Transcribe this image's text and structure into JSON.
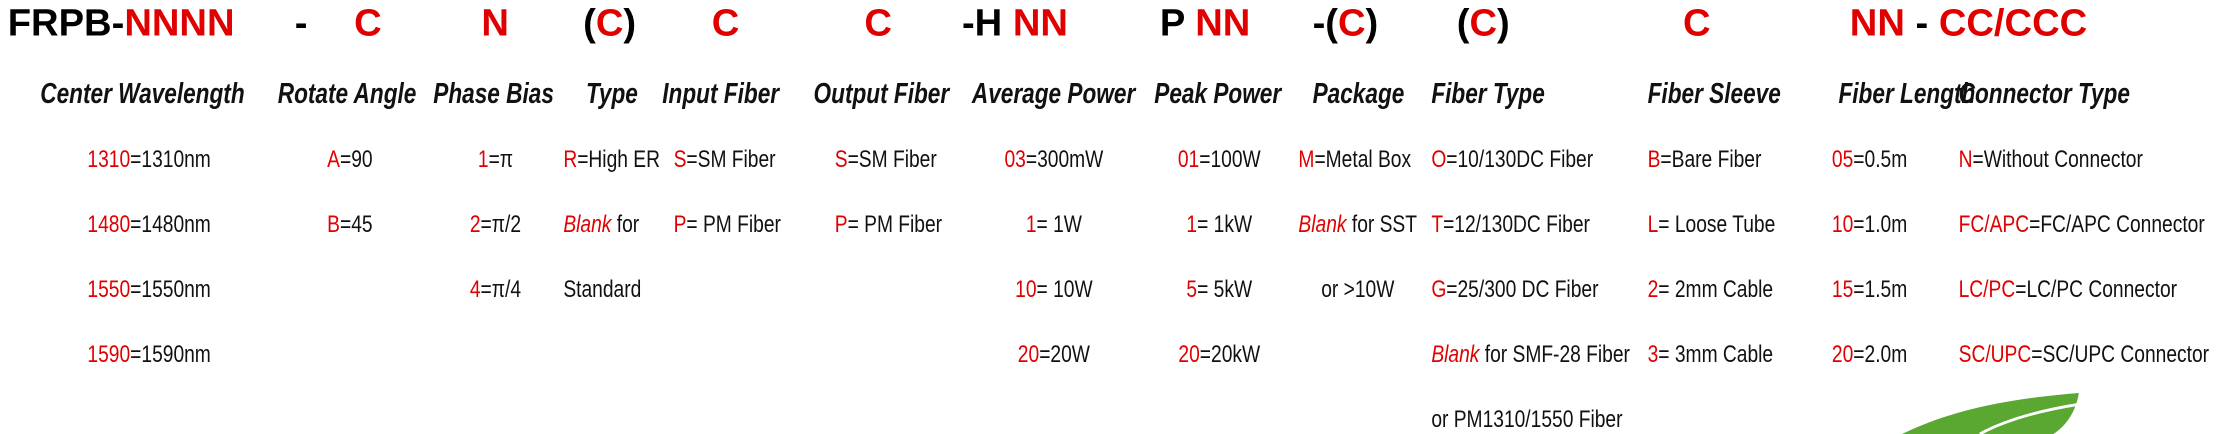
{
  "header": {
    "groups": [
      [
        {
          "text": "FRPB-",
          "color": "#000000"
        },
        {
          "text": "NNNN",
          "color": "#e00000"
        }
      ],
      [
        {
          "text": "-",
          "color": "#000000"
        }
      ],
      [
        {
          "text": "C",
          "color": "#e00000"
        }
      ],
      [
        {
          "text": "N",
          "color": "#e00000"
        }
      ],
      [
        {
          "text": "(",
          "color": "#000000"
        },
        {
          "text": "C",
          "color": "#e00000"
        },
        {
          "text": ")",
          "color": "#000000"
        }
      ],
      [
        {
          "text": "C",
          "color": "#e00000"
        }
      ],
      [
        {
          "text": "C",
          "color": "#e00000"
        }
      ],
      [
        {
          "text": "-H ",
          "color": "#000000"
        },
        {
          "text": "NN",
          "color": "#e00000"
        }
      ],
      [
        {
          "text": "P ",
          "color": "#000000"
        },
        {
          "text": "NN",
          "color": "#e00000"
        }
      ],
      [
        {
          "text": "-(",
          "color": "#000000"
        },
        {
          "text": "C",
          "color": "#e00000"
        },
        {
          "text": ")",
          "color": "#000000"
        }
      ],
      [
        {
          "text": "(",
          "color": "#000000"
        },
        {
          "text": "C",
          "color": "#e00000"
        },
        {
          "text": ")",
          "color": "#000000"
        }
      ],
      [
        {
          "text": "C",
          "color": "#e00000"
        }
      ],
      [
        {
          "text": "NN",
          "color": "#e00000"
        },
        {
          "text": " - ",
          "color": "#000000"
        },
        {
          "text": "CC/CCC",
          "color": "#e00000"
        }
      ]
    ]
  },
  "columns": [
    {
      "title": "Center Wavelength",
      "entries": [
        {
          "code": "1310",
          "text": "=1310nm"
        },
        {
          "code": "1480",
          "text": "=1480nm"
        },
        {
          "code": "1550",
          "text": "=1550nm"
        },
        {
          "code": "1590",
          "text": "=1590nm"
        }
      ]
    },
    {
      "title": "Rotate Angle",
      "entries": [
        {
          "code": "A",
          "text": "=90"
        },
        {
          "code": "B",
          "text": "=45"
        }
      ]
    },
    {
      "title": "Phase Bias",
      "entries": [
        {
          "code": "1",
          "text": "=π"
        },
        {
          "code": "2",
          "text": "=π/2"
        },
        {
          "code": "4",
          "text": "=π/4"
        }
      ]
    },
    {
      "title": "Type",
      "entries": [
        {
          "code": "R",
          "text": "=High ER"
        },
        {
          "code": "Blank",
          "text": " for",
          "italic": true
        },
        {
          "text": "Standard"
        }
      ]
    },
    {
      "title": "Input Fiber",
      "entries": [
        {
          "code": "S",
          "text": "=SM Fiber"
        },
        {
          "code": "P",
          "text": "= PM Fiber"
        }
      ]
    },
    {
      "title": "Output Fiber",
      "entries": [
        {
          "code": "S",
          "text": "=SM Fiber"
        },
        {
          "code": "P",
          "text": "= PM Fiber"
        }
      ]
    },
    {
      "title": "Average Power",
      "entries": [
        {
          "code": "03",
          "text": "=300mW"
        },
        {
          "code": "1",
          "text": "= 1W"
        },
        {
          "code": "10",
          "text": "= 10W"
        },
        {
          "code": "20",
          "text": "=20W"
        }
      ]
    },
    {
      "title": "Peak Power",
      "entries": [
        {
          "code": "01",
          "text": "=100W"
        },
        {
          "code": "1",
          "text": "= 1kW"
        },
        {
          "code": "5",
          "text": "= 5kW"
        },
        {
          "code": "20",
          "text": "=20kW"
        }
      ]
    },
    {
      "title": "Package",
      "entries": [
        {
          "code": "M",
          "text": "=Metal Box"
        },
        {
          "code": "Blank",
          "text": " for SST",
          "italic": true
        },
        {
          "text": "or >10W"
        }
      ]
    },
    {
      "title": "Fiber Type",
      "entries": [
        {
          "code": "O",
          "text": "=10/130DC Fiber"
        },
        {
          "code": "T",
          "text": "=12/130DC Fiber"
        },
        {
          "code": "G",
          "text": "=25/300 DC Fiber"
        },
        {
          "code": "Blank",
          "text": " for SMF-28 Fiber",
          "italic": true
        },
        {
          "text": "or PM1310/1550 Fiber"
        }
      ]
    },
    {
      "title": "Fiber Sleeve",
      "entries": [
        {
          "code": "B",
          "text": "=Bare Fiber"
        },
        {
          "code": "L",
          "text": "= Loose Tube"
        },
        {
          "code": "2",
          "text": "= 2mm Cable"
        },
        {
          "code": "3",
          "text": "= 3mm Cable"
        }
      ]
    },
    {
      "title": "Fiber Length",
      "entries": [
        {
          "code": "05",
          "text": "=0.5m"
        },
        {
          "code": "10",
          "text": "=1.0m"
        },
        {
          "code": "15",
          "text": "=1.5m"
        },
        {
          "code": "20",
          "text": "=2.0m"
        }
      ]
    },
    {
      "title": "Connector Type",
      "entries": [
        {
          "code": "N",
          "text": "=Without Connector"
        },
        {
          "code": "FC/APC",
          "text": "=FC/APC Connector"
        },
        {
          "code": "LC/PC",
          "text": "=LC/PC Connector"
        },
        {
          "code": "SC/UPC",
          "text": "=SC/UPC Connector"
        }
      ]
    }
  ]
}
